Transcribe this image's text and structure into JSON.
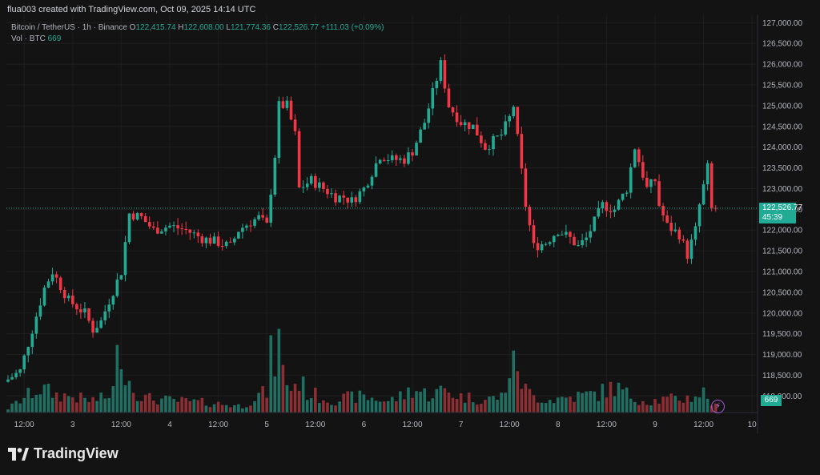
{
  "header": {
    "author_line": "flua003 created with TradingView.com, Oct 09, 2025 14:14 UTC"
  },
  "legend": {
    "symbol": "Bitcoin / TetherUS · 1h · Binance",
    "o_label": "O",
    "o_value": "122,415.74",
    "h_label": "H",
    "h_value": "122,608.00",
    "l_label": "L",
    "l_value": "121,774.36",
    "c_label": "C",
    "c_value": "122,526.77",
    "change": "+111.03 (+0.09%)",
    "vol_label": "Vol · BTC",
    "vol_value": "669"
  },
  "price_tag": {
    "price": "122,526.77",
    "countdown": "45:39"
  },
  "vol_tag": "669",
  "brand": {
    "name": "TradingView"
  },
  "colors": {
    "up": "#22ab94",
    "down": "#f23645",
    "up_vol": "#1f6f63",
    "down_vol": "#8b2f34",
    "grid": "#1e1e1e",
    "text": "#b2b5be"
  },
  "chart_data": {
    "type": "candlestick",
    "ylim": [
      117600,
      127200
    ],
    "yticks": [
      "127,000.00",
      "126,500.00",
      "126,000.00",
      "125,500.00",
      "125,000.00",
      "124,500.00",
      "124,000.00",
      "123,500.00",
      "123,000.00",
      "122,500.00",
      "122,000.00",
      "121,500.00",
      "121,000.00",
      "120,500.00",
      "120,000.00",
      "119,500.00",
      "119,000.00",
      "118,500.00",
      "118,000.00"
    ],
    "xticks": [
      {
        "label": "12:00",
        "i": 4
      },
      {
        "label": "3",
        "i": 16
      },
      {
        "label": "12:00",
        "i": 28
      },
      {
        "label": "4",
        "i": 40
      },
      {
        "label": "12:00",
        "i": 52
      },
      {
        "label": "5",
        "i": 64
      },
      {
        "label": "12:00",
        "i": 76
      },
      {
        "label": "6",
        "i": 88
      },
      {
        "label": "12:00",
        "i": 100
      },
      {
        "label": "7",
        "i": 112
      },
      {
        "label": "12:00",
        "i": 124
      },
      {
        "label": "8",
        "i": 136
      },
      {
        "label": "12:00",
        "i": 148
      },
      {
        "label": "9",
        "i": 160
      },
      {
        "label": "12:00",
        "i": 172
      },
      {
        "label": "10",
        "i": 184
      }
    ],
    "last_price": 122526.77,
    "anchors": [
      [
        0,
        118400
      ],
      [
        3,
        118600
      ],
      [
        6,
        119600
      ],
      [
        9,
        120600
      ],
      [
        11,
        121000
      ],
      [
        15,
        120300
      ],
      [
        19,
        120000
      ],
      [
        21,
        119600
      ],
      [
        23,
        119800
      ],
      [
        25,
        120300
      ],
      [
        28,
        121000
      ],
      [
        30,
        122400
      ],
      [
        33,
        122300
      ],
      [
        36,
        122000
      ],
      [
        40,
        122100
      ],
      [
        44,
        122000
      ],
      [
        48,
        121800
      ],
      [
        52,
        121700
      ],
      [
        55,
        121600
      ],
      [
        57,
        122000
      ],
      [
        60,
        122200
      ],
      [
        62,
        122300
      ],
      [
        64,
        122100
      ],
      [
        66,
        123800
      ],
      [
        67,
        125000
      ],
      [
        69,
        125000
      ],
      [
        71,
        124300
      ],
      [
        72,
        123000
      ],
      [
        75,
        123200
      ],
      [
        78,
        123000
      ],
      [
        81,
        122800
      ],
      [
        83,
        122800
      ],
      [
        85,
        122700
      ],
      [
        88,
        123000
      ],
      [
        92,
        123800
      ],
      [
        95,
        123700
      ],
      [
        98,
        123700
      ],
      [
        100,
        123900
      ],
      [
        103,
        124600
      ],
      [
        107,
        126000
      ],
      [
        109,
        125000
      ],
      [
        112,
        124600
      ],
      [
        115,
        124500
      ],
      [
        118,
        124000
      ],
      [
        122,
        124300
      ],
      [
        124,
        124700
      ],
      [
        125,
        125000
      ],
      [
        126,
        124200
      ],
      [
        128,
        122600
      ],
      [
        130,
        121600
      ],
      [
        133,
        121700
      ],
      [
        136,
        122000
      ],
      [
        139,
        121800
      ],
      [
        141,
        121600
      ],
      [
        143,
        121800
      ],
      [
        145,
        122200
      ],
      [
        147,
        122600
      ],
      [
        150,
        122500
      ],
      [
        153,
        123000
      ],
      [
        155,
        124000
      ],
      [
        158,
        123000
      ],
      [
        160,
        123200
      ],
      [
        161,
        122600
      ],
      [
        163,
        122100
      ],
      [
        166,
        121900
      ],
      [
        168,
        121400
      ],
      [
        170,
        122000
      ],
      [
        171,
        122600
      ],
      [
        173,
        123500
      ],
      [
        174,
        122500
      ],
      [
        175,
        122527
      ]
    ],
    "volume_anchors": [
      [
        0,
        5
      ],
      [
        6,
        25
      ],
      [
        8,
        30
      ],
      [
        12,
        22
      ],
      [
        16,
        20
      ],
      [
        20,
        15
      ],
      [
        24,
        18
      ],
      [
        26,
        28
      ],
      [
        27,
        65
      ],
      [
        28,
        95
      ],
      [
        29,
        50
      ],
      [
        31,
        30
      ],
      [
        34,
        18
      ],
      [
        40,
        15
      ],
      [
        50,
        12
      ],
      [
        58,
        8
      ],
      [
        62,
        22
      ],
      [
        64,
        25
      ],
      [
        65,
        68
      ],
      [
        66,
        65
      ],
      [
        67,
        88
      ],
      [
        68,
        50
      ],
      [
        70,
        30
      ],
      [
        72,
        40
      ],
      [
        74,
        25
      ],
      [
        80,
        15
      ],
      [
        86,
        20
      ],
      [
        90,
        18
      ],
      [
        94,
        14
      ],
      [
        98,
        22
      ],
      [
        100,
        30
      ],
      [
        104,
        22
      ],
      [
        108,
        28
      ],
      [
        112,
        20
      ],
      [
        118,
        16
      ],
      [
        122,
        20
      ],
      [
        124,
        50
      ],
      [
        126,
        62
      ],
      [
        127,
        40
      ],
      [
        128,
        28
      ],
      [
        130,
        20
      ],
      [
        134,
        16
      ],
      [
        140,
        20
      ],
      [
        146,
        24
      ],
      [
        150,
        32
      ],
      [
        154,
        20
      ],
      [
        158,
        14
      ],
      [
        162,
        16
      ],
      [
        168,
        18
      ],
      [
        172,
        25
      ],
      [
        174,
        12
      ],
      [
        175,
        8
      ]
    ]
  }
}
